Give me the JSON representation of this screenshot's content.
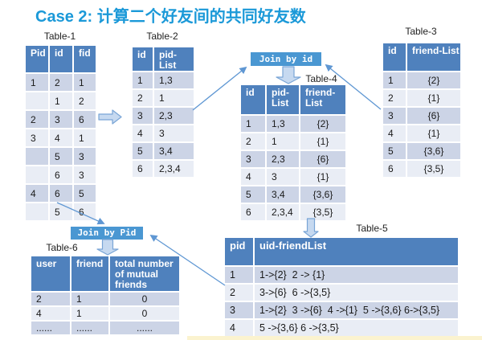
{
  "title": "Case 2: 计算二个好友间的共同好友数",
  "labels": {
    "join_by_id": "Join by id",
    "join_by_pid": "Join by Pid"
  },
  "tables": {
    "table1": {
      "label": "Table-1",
      "headers": [
        "Pid",
        "id",
        "fid"
      ],
      "rows": [
        [
          "1",
          "2",
          "1"
        ],
        [
          "",
          "1",
          "2"
        ],
        [
          "2",
          "3",
          "6"
        ],
        [
          "3",
          "4",
          "1"
        ],
        [
          "",
          "5",
          "3"
        ],
        [
          "",
          "6",
          "3"
        ],
        [
          "4",
          "6",
          "5"
        ],
        [
          "",
          "5",
          "6"
        ]
      ]
    },
    "table2": {
      "label": "Table-2",
      "headers": [
        "id",
        "pid-List"
      ],
      "rows": [
        [
          "1",
          "1,3"
        ],
        [
          "2",
          "1"
        ],
        [
          "3",
          "2,3"
        ],
        [
          "4",
          "3"
        ],
        [
          "5",
          "3,4"
        ],
        [
          "6",
          "2,3,4"
        ]
      ]
    },
    "table3": {
      "label": "Table-3",
      "headers": [
        "id",
        "friend-List"
      ],
      "rows": [
        [
          "1",
          "{2}"
        ],
        [
          "2",
          "{1}"
        ],
        [
          "3",
          "{6}"
        ],
        [
          "4",
          "{1}"
        ],
        [
          "5",
          "{3,6}"
        ],
        [
          "6",
          "{3,5}"
        ]
      ]
    },
    "table4": {
      "label": "Table-4",
      "headers": [
        "id",
        "pid-List",
        "friend-List"
      ],
      "rows": [
        [
          "1",
          "1,3",
          "{2}"
        ],
        [
          "2",
          "1",
          "{1}"
        ],
        [
          "3",
          "2,3",
          "{6}"
        ],
        [
          "4",
          "3",
          "{1}"
        ],
        [
          "5",
          "3,4",
          "{3,6}"
        ],
        [
          "6",
          "2,3,4",
          "{3,5}"
        ]
      ]
    },
    "table5": {
      "label": "Table-5",
      "headers": [
        "pid",
        "uid-friendList"
      ],
      "rows": [
        [
          "1",
          "1->{2}  2 -> {1}"
        ],
        [
          "2",
          "3->{6}  6 ->{3,5}"
        ],
        [
          "3",
          "1->{2}  3 ->{6}  4 ->{1}  5 ->{3,6} 6->{3,5}"
        ],
        [
          "4",
          "5 ->{3,6} 6 ->{3,5}"
        ]
      ]
    },
    "table6": {
      "label": "Table-6",
      "headers": [
        "user",
        "friend",
        "total number of mutual friends"
      ],
      "rows": [
        [
          "2",
          "1",
          "0"
        ],
        [
          "4",
          "1",
          "0"
        ],
        [
          "......",
          "......",
          "......"
        ]
      ]
    }
  },
  "connections": [
    {
      "from": "Table-1",
      "to": "Table-2"
    },
    {
      "from": "Table-2",
      "to": "Join by id"
    },
    {
      "from": "Table-3",
      "to": "Join by id"
    },
    {
      "from": "Join by id",
      "to": "Table-4"
    },
    {
      "from": "Table-4",
      "to": "Table-5"
    },
    {
      "from": "Table-1",
      "to": "Join by Pid"
    },
    {
      "from": "Table-5",
      "to": "Join by Pid"
    },
    {
      "from": "Join by Pid",
      "to": "Table-6"
    }
  ],
  "colors": {
    "title_blue": "#1b99d8",
    "header_blue": "#4f81bd",
    "join_blue": "#4a97d2",
    "row_dark": "#ccd4e6",
    "row_light": "#e9edf5",
    "arrow_blue": "#5f97d3",
    "block_fill": "#c6d9f0",
    "block_stroke": "#79a5d6",
    "strip_yellow": "#fbf3cf"
  }
}
